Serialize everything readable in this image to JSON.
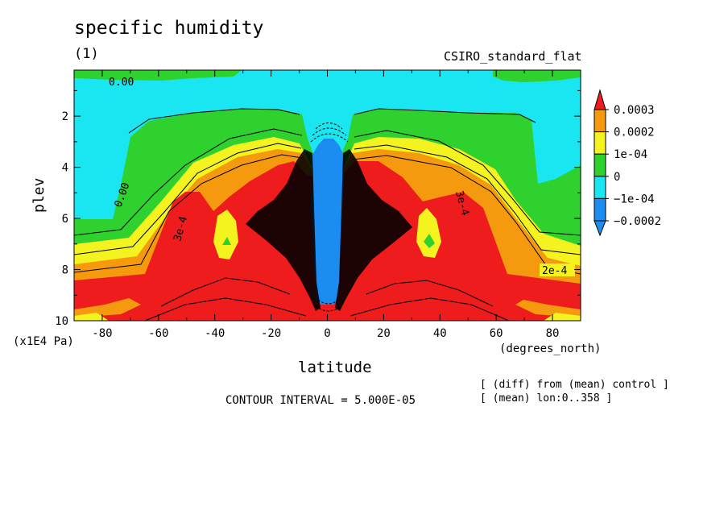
{
  "title": "specific humidity",
  "panel_label": "(1)",
  "model_label": "CSIRO_standard_flat",
  "contour_interval": "CONTOUR INTERVAL = 5.000E-05",
  "notes": [
    "[ (diff) from (mean) control ]",
    "[ (mean) lon:0..358 ]"
  ],
  "colors": {
    "red": "#ee1c1c",
    "orange": "#f59a0f",
    "yellow": "#f4f21f",
    "green": "#2fd12f",
    "cyan": "#19e6f0",
    "blue": "#1c8cf0"
  },
  "chart_data": {
    "type": "contour",
    "variable": "specific humidity",
    "xlabel": "latitude",
    "xunits": "(degrees_north)",
    "ylabel": "plev",
    "yunits": "(x1E4 Pa)",
    "xlim": [
      -90,
      90
    ],
    "ylim": [
      10,
      0.2
    ],
    "xticks": [
      -80,
      -60,
      -40,
      -20,
      0,
      20,
      40,
      60,
      80
    ],
    "yticks": [
      2,
      4,
      6,
      8,
      10
    ],
    "contour_interval": 5e-05,
    "legend": {
      "labels": [
        "0.0003",
        "0.0002",
        "1e-04",
        "0",
        "−1e-04",
        "−0.0002"
      ],
      "colors": [
        "#ee1c1c",
        "#f59a0f",
        "#f4f21f",
        "#2fd12f",
        "#19e6f0",
        "#1c8cf0",
        "#1c8cf0"
      ]
    },
    "contour_labels": [
      "0.00",
      "0.00",
      "3e-4",
      "3e-4",
      "2e-4"
    ]
  }
}
